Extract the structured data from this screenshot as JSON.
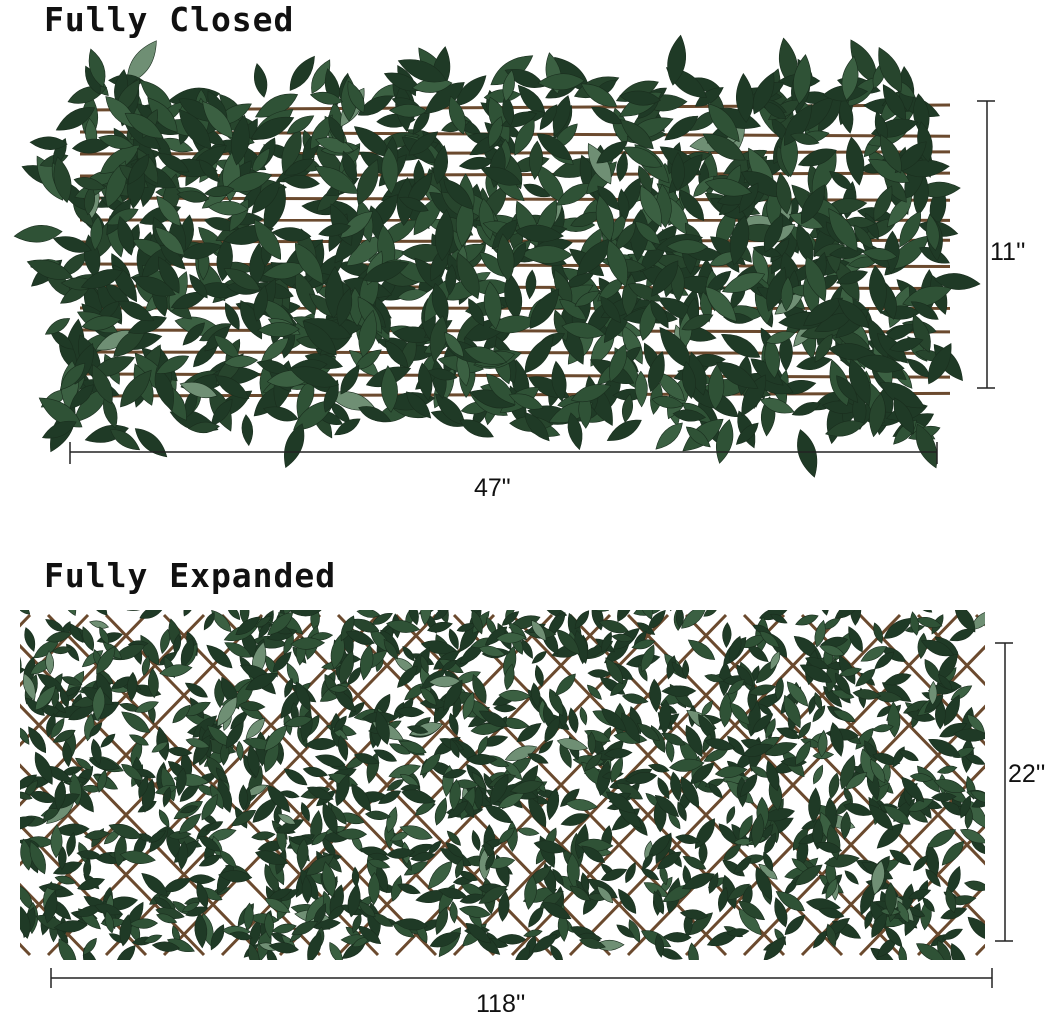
{
  "closed": {
    "title": "Fully Closed",
    "height_label": "11''",
    "width_label": "47\""
  },
  "expanded": {
    "title": "Fully Expanded",
    "height_label": "22''",
    "width_label": "118''"
  },
  "colors": {
    "leaf_dark": "#1f3a26",
    "leaf_mid": "#2f5236",
    "leaf_light": "#6f8f74",
    "lattice": "#6b4a2e"
  }
}
